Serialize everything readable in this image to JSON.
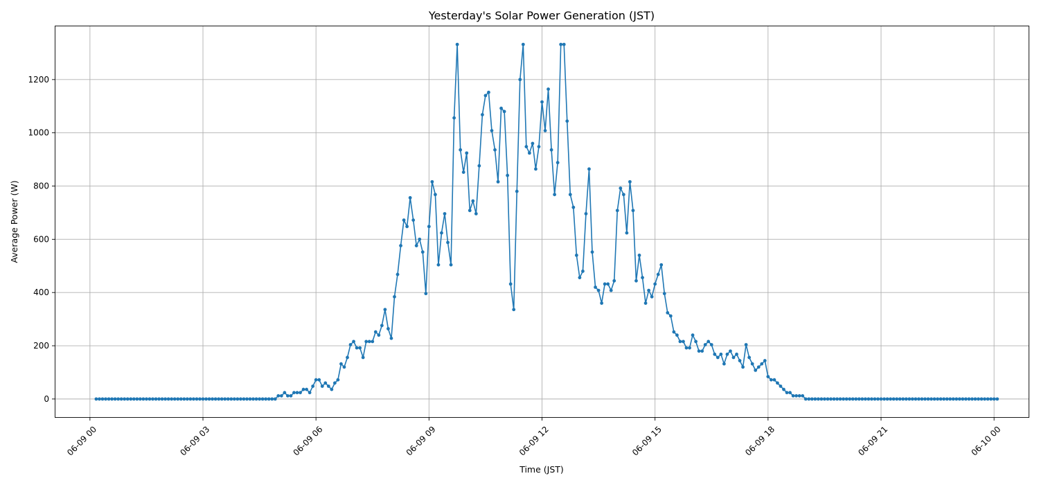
{
  "chart_data": {
    "type": "line",
    "title": "Yesterday's Solar Power Generation (JST)",
    "xlabel": "Time (JST)",
    "ylabel": "Average Power (W)",
    "x_ticks": [
      "06-09 00",
      "06-09 03",
      "06-09 06",
      "06-09 09",
      "06-09 12",
      "06-09 15",
      "06-09 18",
      "06-09 21",
      "06-10 00"
    ],
    "y_ticks": [
      0,
      200,
      400,
      600,
      800,
      1000,
      1200
    ],
    "xlim": [
      "2024-06-08T23:05",
      "2024-06-10T00:55"
    ],
    "ylim": [
      -68,
      1400
    ],
    "grid": true,
    "series_color": "#1f77b4",
    "series": [
      {
        "x_start": "06-09 00:10",
        "x_step_minutes": 5,
        "values": [
          0,
          0,
          0,
          0,
          0,
          0,
          0,
          0,
          0,
          0,
          0,
          0,
          0,
          0,
          0,
          0,
          0,
          0,
          0,
          0,
          0,
          0,
          0,
          0,
          0,
          0,
          0,
          0,
          0,
          0,
          0,
          0,
          0,
          0,
          0,
          0,
          0,
          0,
          0,
          0,
          0,
          0,
          0,
          0,
          0,
          0,
          0,
          0,
          0,
          0,
          0,
          0,
          0,
          0,
          0,
          0,
          0,
          0,
          12,
          12,
          24,
          12,
          12,
          24,
          24,
          24,
          36,
          36,
          24,
          48,
          72,
          72,
          48,
          60,
          48,
          36,
          60,
          72,
          132,
          120,
          156,
          204,
          216,
          192,
          192,
          156,
          216,
          216,
          216,
          252,
          240,
          276,
          336,
          264,
          228,
          384,
          468,
          576,
          672,
          648,
          756,
          672,
          576,
          600,
          552,
          396,
          648,
          816,
          768,
          504,
          624,
          696,
          588,
          504,
          1056,
          1332,
          936,
          852,
          924,
          708,
          744,
          696,
          876,
          1068,
          1140,
          1152,
          1008,
          936,
          816,
          1092,
          1080,
          840,
          432,
          336,
          780,
          1200,
          1332,
          948,
          924,
          960,
          864,
          948,
          1116,
          1008,
          1164,
          936,
          768,
          888,
          1332,
          1332,
          1044,
          768,
          720,
          540,
          456,
          480,
          696,
          864,
          552,
          420,
          408,
          360,
          432,
          432,
          408,
          444,
          708,
          792,
          768,
          624,
          816,
          708,
          444,
          540,
          456,
          360,
          408,
          384,
          432,
          468,
          504,
          396,
          324,
          312,
          252,
          240,
          216,
          216,
          192,
          192,
          240,
          216,
          180,
          180,
          204,
          216,
          204,
          168,
          156,
          168,
          132,
          168,
          180,
          156,
          168,
          144,
          120,
          204,
          156,
          132,
          108,
          120,
          132,
          144,
          84,
          72,
          72,
          60,
          48,
          36,
          24,
          24,
          12,
          12,
          12,
          12,
          0,
          0,
          0,
          0,
          0,
          0,
          0,
          0,
          0,
          0,
          0,
          0,
          0,
          0,
          0,
          0,
          0,
          0,
          0,
          0,
          0,
          0,
          0,
          0,
          0,
          0,
          0,
          0,
          0,
          0,
          0,
          0,
          0,
          0,
          0,
          0,
          0,
          0,
          0,
          0,
          0,
          0,
          0,
          0,
          0,
          0,
          0,
          0,
          0,
          0,
          0,
          0,
          0,
          0,
          0,
          0,
          0,
          0,
          0,
          0,
          0,
          0
        ]
      }
    ]
  }
}
